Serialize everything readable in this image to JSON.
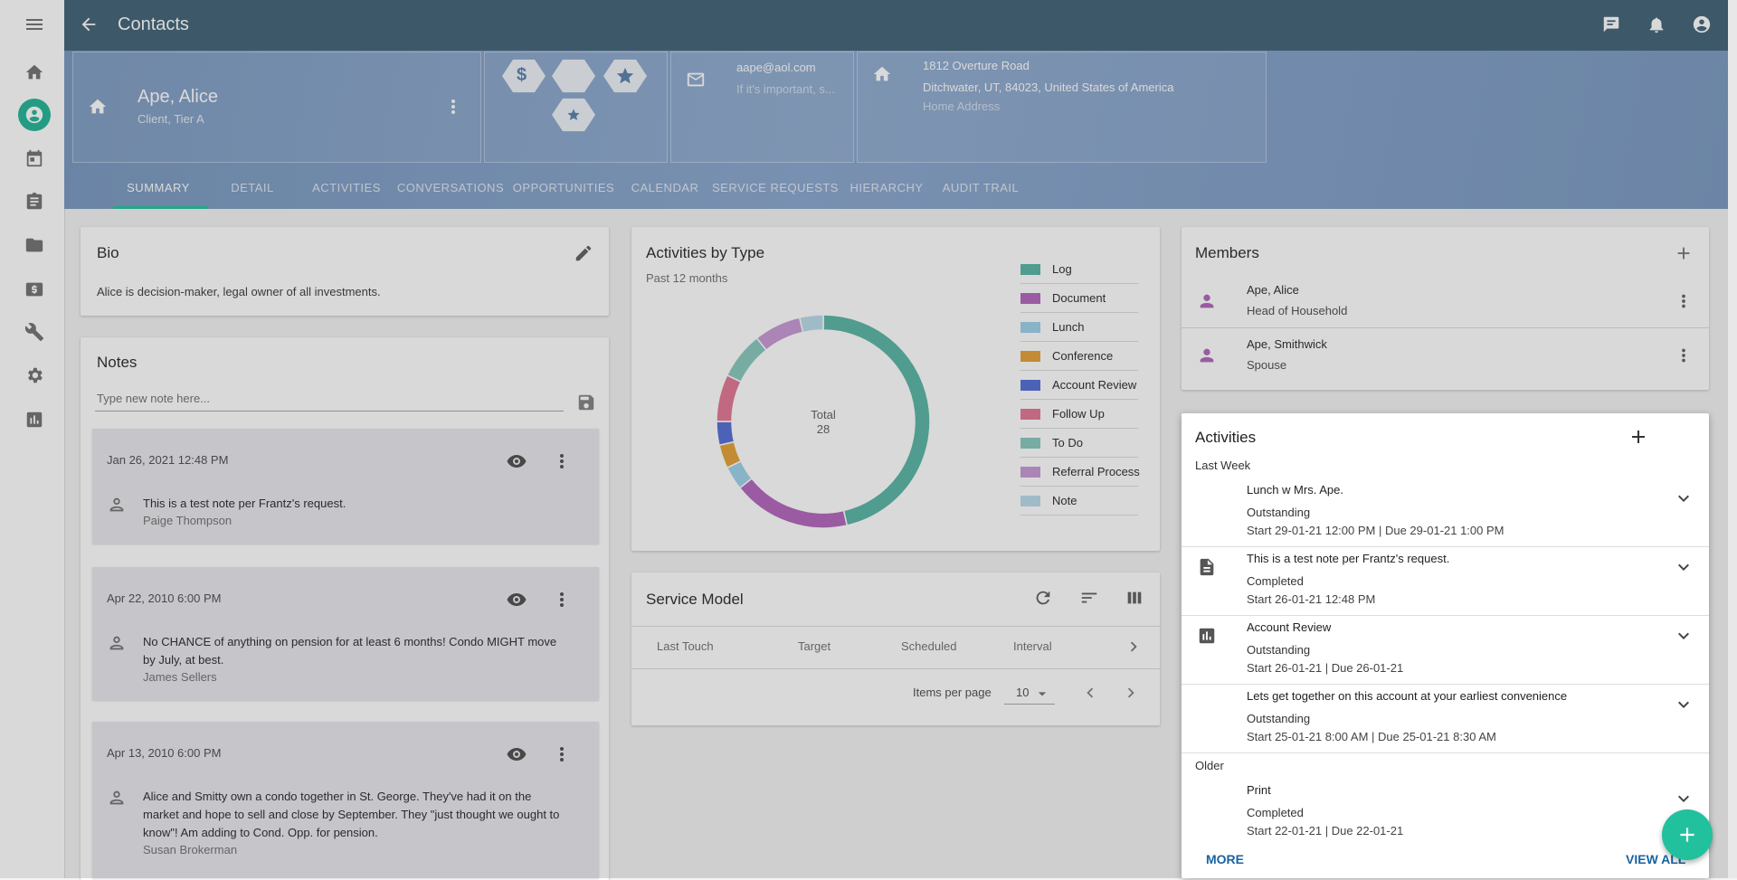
{
  "app_bar": {
    "title": "Contacts"
  },
  "profile": {
    "name": "Ape, Alice",
    "subtitle": "Client, Tier A"
  },
  "contact": {
    "email": "aape@aol.com",
    "note": "If it's important, s...",
    "address_line1": "1812 Overture Road",
    "address_line2": "Ditchwater, UT, 84023, United States of America",
    "address_type": "Home Address"
  },
  "tabs": [
    "SUMMARY",
    "DETAIL",
    "ACTIVITIES",
    "CONVERSATIONS",
    "OPPORTUNITIES",
    "CALENDAR",
    "SERVICE REQUESTS",
    "HIERARCHY",
    "AUDIT TRAIL"
  ],
  "bio": {
    "title": "Bio",
    "text": "Alice is decision-maker, legal owner of all investments."
  },
  "notes": {
    "title": "Notes",
    "placeholder": "Type new note here...",
    "items": [
      {
        "date": "Jan 26, 2021 12:48 PM",
        "text": "This is a test note per Frantz's request.",
        "author": "Paige Thompson"
      },
      {
        "date": "Apr 22, 2010 6:00 PM",
        "text": "No CHANCE of anything on pension for at least 6 months!  Condo MIGHT move by July, at best.",
        "author": "James Sellers"
      },
      {
        "date": "Apr 13, 2010 6:00 PM",
        "text": "Alice and Smitty own a condo together in St. George. They've had it on the market and hope to sell and close by September.  They \"just thought we ought to know\"!  Am adding to Cond. Opp. for pension.",
        "author": "Susan Brokerman"
      }
    ]
  },
  "chart_data": {
    "type": "pie",
    "title": "Activities by Type",
    "subtitle": "Past 12 months",
    "center_label": "Total",
    "center_value": 28,
    "categories": [
      "Log",
      "Document",
      "Lunch",
      "Conference",
      "Account Review",
      "Follow Up",
      "To Do",
      "Referral Process",
      "Note"
    ],
    "values": [
      13,
      5,
      1,
      1,
      1,
      2,
      2,
      2,
      1
    ],
    "colors": [
      "#5fb8a8",
      "#b66cc0",
      "#a2d3ea",
      "#e6a43c",
      "#5a74d6",
      "#e27c98",
      "#8ccac0",
      "#c99dd5",
      "#bcdceb"
    ]
  },
  "service_model": {
    "title": "Service Model",
    "columns": [
      "Last Touch",
      "Target",
      "Scheduled",
      "Interval"
    ],
    "items_per_page_label": "Items per page",
    "items_per_page": 10
  },
  "members": {
    "title": "Members",
    "items": [
      {
        "name": "Ape, Alice",
        "role": "Head of Household"
      },
      {
        "name": "Ape, Smithwick",
        "role": "Spouse"
      }
    ]
  },
  "activities": {
    "title": "Activities",
    "groups": [
      {
        "label": "Last Week",
        "items": [
          {
            "title": "Lunch w Mrs. Ape.",
            "status": "Outstanding",
            "dates": "Start 29-01-21 12:00 PM | Due 29-01-21 1:00 PM"
          },
          {
            "title": "This is a test note per Frantz's request.",
            "status": "Completed",
            "dates": "Start 26-01-21 12:48 PM"
          },
          {
            "title": "Account Review",
            "status": "Outstanding",
            "dates": "Start 26-01-21 | Due 26-01-21"
          },
          {
            "title": "Lets get together on this account at your earliest convenience",
            "status": "Outstanding",
            "dates": "Start 25-01-21 8:00 AM | Due 25-01-21 8:30 AM"
          }
        ]
      },
      {
        "label": "Older",
        "items": [
          {
            "title": "Print",
            "status": "Completed",
            "dates": "Start 22-01-21 | Due 22-01-21"
          }
        ]
      }
    ],
    "more": "MORE",
    "view_all": "VIEW ALL"
  }
}
